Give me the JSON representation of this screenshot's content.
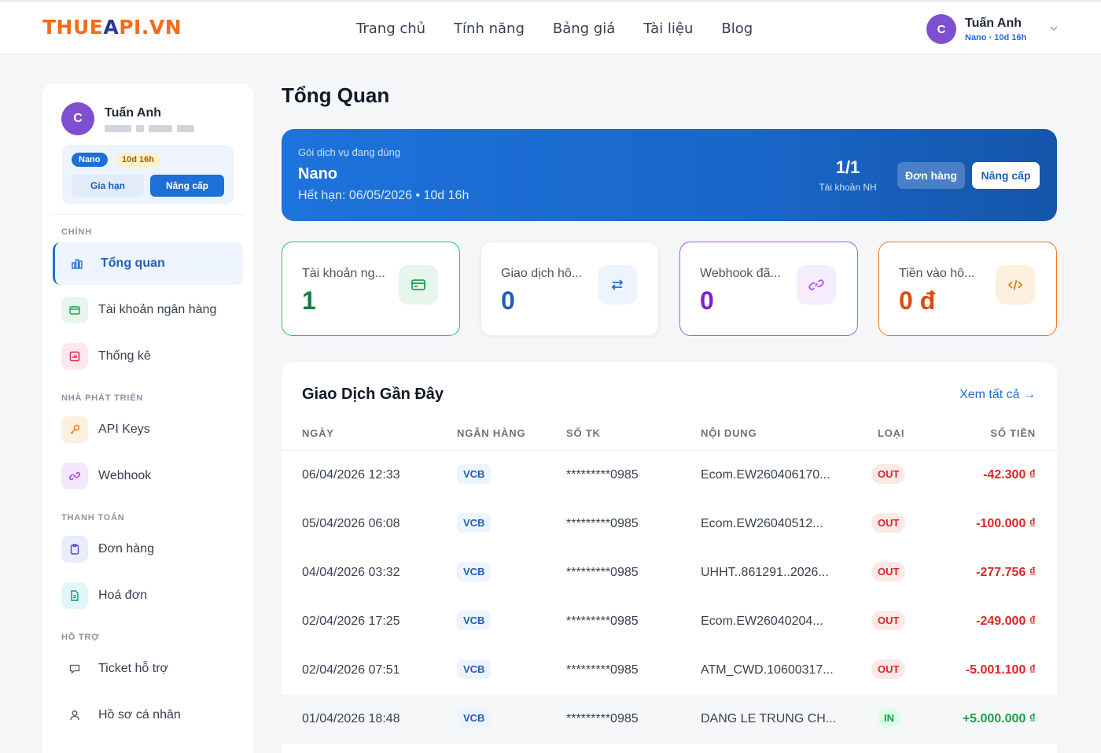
{
  "brand": {
    "part1": "THUE",
    "part2": "A",
    "part3": "PI.VN"
  },
  "nav": {
    "items": [
      "Trang chủ",
      "Tính năng",
      "Bảng giá",
      "Tài liệu",
      "Blog"
    ]
  },
  "user": {
    "initial": "C",
    "name": "Tuấn Anh",
    "sub": "Nano · 10d 16h"
  },
  "sidebar": {
    "user_name": "Tuấn Anh",
    "plan_pill": "Nano",
    "time_pill": "10d 16h",
    "extend_label": "Gia hạn",
    "upgrade_label": "Nâng cấp",
    "sections": {
      "main": "CHÍNH",
      "dev": "NHÀ PHÁT TRIỂN",
      "pay": "THANH TOÁN",
      "support": "HỖ TRỢ"
    },
    "items": {
      "overview": "Tổng quan",
      "bank": "Tài khoản ngân hàng",
      "stats": "Thống kê",
      "api": "API Keys",
      "webhook": "Webhook",
      "orders": "Đơn hàng",
      "invoices": "Hoá đơn",
      "ticket": "Ticket hỗ trợ",
      "profile": "Hồ sơ cá nhân"
    }
  },
  "page": {
    "title": "Tổng Quan"
  },
  "banner": {
    "label": "Gói dịch vụ đang dùng",
    "plan": "Nano",
    "expiry": "Hết hạn: 06/05/2026 • 10d 16h",
    "count": "1/1",
    "count_label": "Tài khoản NH",
    "orders_btn": "Đơn hàng",
    "upgrade_btn": "Nâng cấp"
  },
  "cards": [
    {
      "title": "Tài khoản ng...",
      "value": "1",
      "color": "#22c55e"
    },
    {
      "title": "Giao dịch hô...",
      "value": "0",
      "color": "#e5e7eb"
    },
    {
      "title": "Webhook đã...",
      "value": "0",
      "color": "#a855f7"
    },
    {
      "title": "Tiền vào hô...",
      "value": "0 đ",
      "color": "#f97316"
    }
  ],
  "transactions": {
    "title": "Giao Dịch Gần Đây",
    "view_all": "Xem tất cả →",
    "headers": {
      "date": "NGÀY",
      "bank": "NGÂN HÀNG",
      "account": "SỐ TK",
      "content": "NỘI DUNG",
      "type": "LOẠI",
      "amount": "SỐ TIỀN"
    },
    "rows": [
      {
        "date": "06/04/2026 12:33",
        "bank": "VCB",
        "account": "*********0985",
        "content": "Ecom.EW260406170...",
        "type": "OUT",
        "amount": "-42.300 ₫"
      },
      {
        "date": "05/04/2026 06:08",
        "bank": "VCB",
        "account": "*********0985",
        "content": "Ecom.EW26040512...",
        "type": "OUT",
        "amount": "-100.000 ₫"
      },
      {
        "date": "04/04/2026 03:32",
        "bank": "VCB",
        "account": "*********0985",
        "content": "UHHT..861291..2026...",
        "type": "OUT",
        "amount": "-277.756 ₫"
      },
      {
        "date": "02/04/2026 17:25",
        "bank": "VCB",
        "account": "*********0985",
        "content": "Ecom.EW26040204...",
        "type": "OUT",
        "amount": "-249.000 ₫"
      },
      {
        "date": "02/04/2026 07:51",
        "bank": "VCB",
        "account": "*********0985",
        "content": "ATM_CWD.10600317...",
        "type": "OUT",
        "amount": "-5.001.100 ₫"
      },
      {
        "date": "01/04/2026 18:48",
        "bank": "VCB",
        "account": "*********0985",
        "content": "DANG LE TRUNG CH...",
        "type": "IN",
        "amount": "+5.000.000 ₫"
      }
    ]
  },
  "colors": {
    "primary": "#1e6fd6",
    "out": "#dc2626",
    "in": "#16a34a",
    "brand_orange": "#f36b1c"
  }
}
